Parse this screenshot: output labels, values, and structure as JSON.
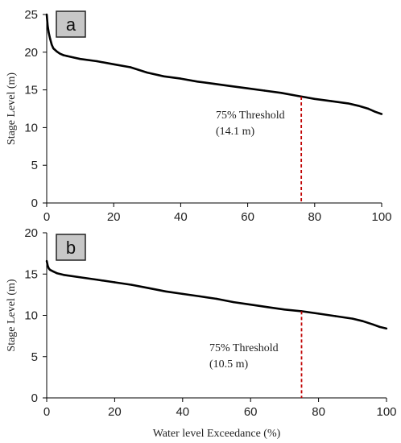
{
  "chart_data": [
    {
      "panel_label": "a",
      "type": "line",
      "xlabel": "",
      "ylabel": "Stage Level (m)",
      "xlim": [
        0,
        100
      ],
      "ylim": [
        0,
        25
      ],
      "xticks": [
        "0",
        "20",
        "40",
        "60",
        "80",
        "100"
      ],
      "yticks": [
        "0",
        "5",
        "10",
        "15",
        "20",
        "25"
      ],
      "grid": false,
      "series": [
        {
          "color": "#000000",
          "x": [
            0,
            0.3,
            0.6,
            1,
            1.5,
            2,
            3,
            4,
            5,
            6,
            8,
            10,
            15,
            20,
            25,
            30,
            35,
            40,
            45,
            50,
            55,
            60,
            65,
            70,
            75,
            80,
            85,
            90,
            93,
            96,
            98,
            100
          ],
          "y": [
            25,
            23.5,
            22.6,
            21.8,
            21.0,
            20.5,
            20.1,
            19.8,
            19.6,
            19.5,
            19.3,
            19.1,
            18.8,
            18.4,
            18.0,
            17.3,
            16.8,
            16.5,
            16.1,
            15.8,
            15.5,
            15.2,
            14.9,
            14.6,
            14.2,
            13.8,
            13.5,
            13.2,
            12.9,
            12.5,
            12.1,
            11.8
          ]
        }
      ],
      "threshold": {
        "x": 76,
        "y": 14.1,
        "color": "#c00000"
      },
      "annotation": [
        "75% Threshold",
        "(14.1 m)"
      ]
    },
    {
      "panel_label": "b",
      "type": "line",
      "xlabel": "Water level Exceedance (%)",
      "ylabel": "Stage Level (m)",
      "xlim": [
        0,
        100
      ],
      "ylim": [
        0,
        20
      ],
      "xticks": [
        "0",
        "20",
        "40",
        "60",
        "80",
        "100"
      ],
      "yticks": [
        "0",
        "5",
        "10",
        "15",
        "20"
      ],
      "grid": false,
      "series": [
        {
          "color": "#000000",
          "x": [
            0,
            0.3,
            0.6,
            1,
            2,
            3,
            5,
            10,
            15,
            20,
            25,
            30,
            35,
            40,
            45,
            50,
            55,
            60,
            65,
            70,
            75,
            80,
            85,
            90,
            93,
            96,
            98,
            100
          ],
          "y": [
            16.6,
            16.0,
            15.7,
            15.5,
            15.3,
            15.1,
            14.9,
            14.6,
            14.3,
            14.0,
            13.7,
            13.3,
            12.9,
            12.6,
            12.3,
            12.0,
            11.6,
            11.3,
            11.0,
            10.7,
            10.5,
            10.2,
            9.9,
            9.6,
            9.3,
            8.9,
            8.6,
            8.4
          ]
        }
      ],
      "threshold": {
        "x": 75,
        "y": 10.5,
        "color": "#c00000"
      },
      "annotation": [
        "75% Threshold",
        "(10.5 m)"
      ]
    }
  ]
}
